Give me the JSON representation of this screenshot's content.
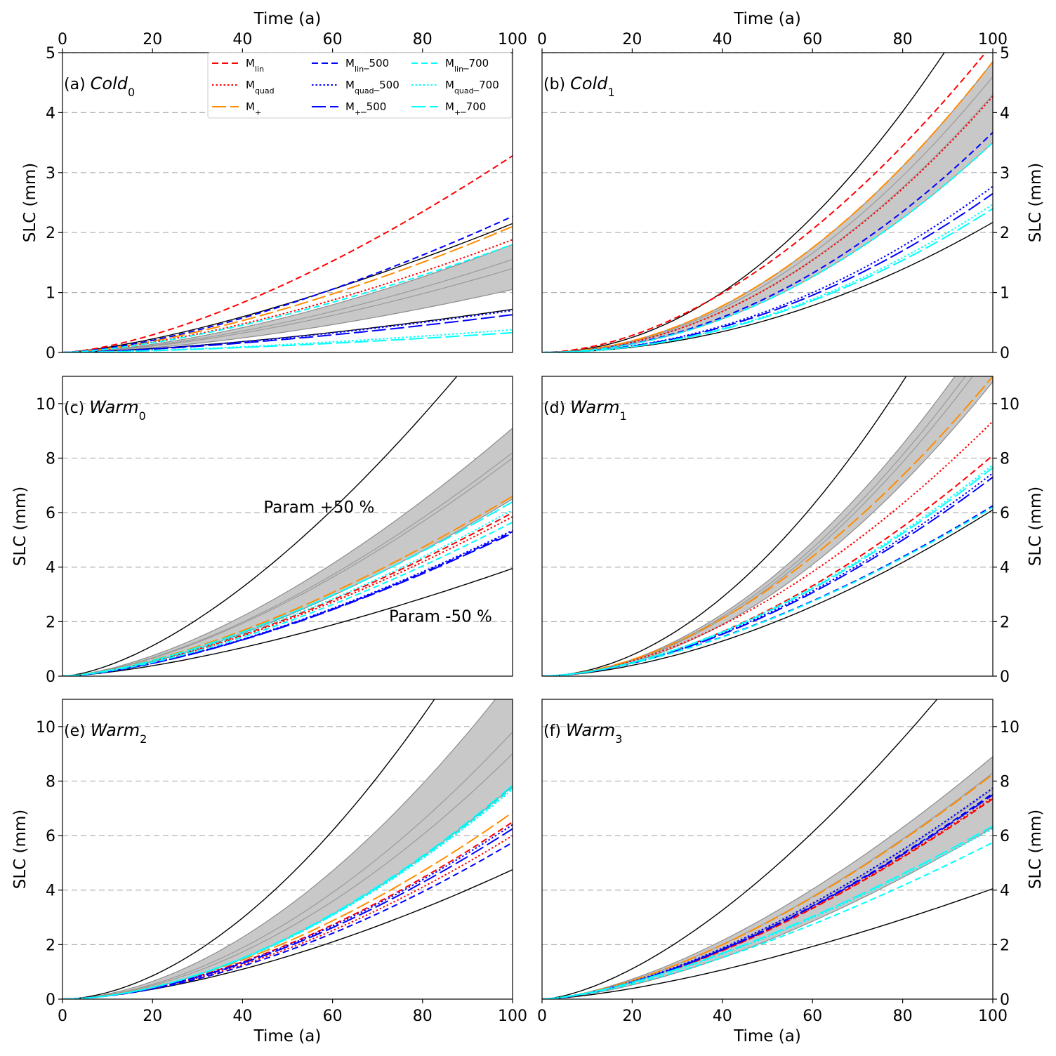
{
  "chart_data": {
    "type": "line",
    "panel_order": [
      "a",
      "b",
      "c",
      "d",
      "e",
      "f"
    ],
    "x_axis": {
      "label": "Time (a)",
      "lim": [
        0,
        100
      ],
      "ticks": [
        "0",
        "20",
        "40",
        "60",
        "80",
        "100"
      ]
    },
    "y_label": "SLC (mm)",
    "grid": "horizontal dashed",
    "legend": {
      "placement": "top-center of panel (a)",
      "entries": [
        {
          "base": "M",
          "sub": "lin",
          "suffix": "",
          "color": "#ff0000",
          "dash": "dashed"
        },
        {
          "base": "M",
          "sub": "quad",
          "suffix": "",
          "color": "#ff0000",
          "dash": "dotted"
        },
        {
          "base": "M",
          "sub": "+",
          "suffix": "",
          "color": "#ff8c00",
          "dash": "longdash"
        },
        {
          "base": "M",
          "sub": "lin",
          "suffix": "_500",
          "color": "#0000ff",
          "dash": "dashed"
        },
        {
          "base": "M",
          "sub": "quad",
          "suffix": "_500",
          "color": "#0000ff",
          "dash": "dotted"
        },
        {
          "base": "M",
          "sub": "+",
          "suffix": "_500",
          "color": "#0000ff",
          "dash": "longdash"
        },
        {
          "base": "M",
          "sub": "lin",
          "suffix": "_700",
          "color": "#00ffff",
          "dash": "dashed"
        },
        {
          "base": "M",
          "sub": "quad",
          "suffix": "_700",
          "color": "#00ffff",
          "dash": "dotted"
        },
        {
          "base": "M",
          "sub": "+",
          "suffix": "_700",
          "color": "#00ffff",
          "dash": "longdash"
        }
      ]
    },
    "panels": {
      "a": {
        "label_prefix": "(a)",
        "scenario": "Cold",
        "scenario_sub": "0",
        "ylim": [
          0,
          5
        ],
        "yticks": [
          0,
          1,
          2,
          3,
          4,
          5
        ],
        "top_axis": true,
        "bottom_axis": false,
        "yaxis_side": "left",
        "envelope": {
          "exponent": 1.6,
          "lower_end": 1.05,
          "upper_end": 1.8
        },
        "inner_lines": [
          {
            "exponent": 1.6,
            "end": 1.4
          },
          {
            "exponent": 1.6,
            "end": 1.55
          }
        ],
        "black_lines": [
          {
            "exponent": 1.4,
            "end": 2.15
          },
          {
            "exponent": 1.5,
            "end": 0.72
          }
        ],
        "series": [
          {
            "legend": 0,
            "exponent": 1.5,
            "end": 3.28
          },
          {
            "legend": 1,
            "exponent": 1.5,
            "end": 1.88
          },
          {
            "legend": 2,
            "exponent": 1.5,
            "end": 2.1
          },
          {
            "legend": 3,
            "exponent": 1.5,
            "end": 2.27
          },
          {
            "legend": 4,
            "exponent": 1.5,
            "end": 0.7
          },
          {
            "legend": 5,
            "exponent": 1.5,
            "end": 0.63
          },
          {
            "legend": 6,
            "exponent": 1.5,
            "end": 1.8
          },
          {
            "legend": 7,
            "exponent": 1.5,
            "end": 0.38
          },
          {
            "legend": 8,
            "exponent": 1.5,
            "end": 0.33
          }
        ]
      },
      "b": {
        "label_prefix": "(b)",
        "scenario": "Cold",
        "scenario_sub": "1",
        "ylim": [
          0,
          5
        ],
        "yticks": [
          0,
          1,
          2,
          3,
          4,
          5
        ],
        "top_axis": true,
        "bottom_axis": false,
        "yaxis_side": "right",
        "envelope": {
          "exponent": 2.0,
          "lower_end": 3.5,
          "upper_end": 4.85
        },
        "inner_lines": [
          {
            "exponent": 2.0,
            "end": 4.3
          },
          {
            "exponent": 2.0,
            "end": 4.6
          }
        ],
        "black_lines": [
          {
            "exponent": 2.0,
            "end": 6.28
          },
          {
            "exponent": 2.0,
            "end": 2.17
          }
        ],
        "series": [
          {
            "legend": 0,
            "exponent": 1.8,
            "end": 5.15
          },
          {
            "legend": 1,
            "exponent": 2.0,
            "end": 4.27
          },
          {
            "legend": 2,
            "exponent": 2.0,
            "end": 4.85
          },
          {
            "legend": 3,
            "exponent": 2.0,
            "end": 3.67
          },
          {
            "legend": 4,
            "exponent": 2.0,
            "end": 2.77
          },
          {
            "legend": 5,
            "exponent": 2.0,
            "end": 2.65
          },
          {
            "legend": 6,
            "exponent": 2.0,
            "end": 3.5
          },
          {
            "legend": 7,
            "exponent": 2.0,
            "end": 2.47
          },
          {
            "legend": 8,
            "exponent": 2.0,
            "end": 2.4
          }
        ]
      },
      "c": {
        "label_prefix": "(c)",
        "scenario": "Warm",
        "scenario_sub": "0",
        "ylim": [
          0,
          11
        ],
        "yticks": [
          0,
          2,
          4,
          6,
          8,
          10
        ],
        "top_axis": false,
        "bottom_axis": false,
        "yaxis_side": "left",
        "envelope": {
          "exponent": 1.55,
          "lower_end": 6.5,
          "upper_end": 9.1
        },
        "inner_lines": [
          {
            "exponent": 1.55,
            "end": 8.0
          },
          {
            "exponent": 1.55,
            "end": 8.2
          }
        ],
        "black_lines": [
          {
            "exponent": 1.55,
            "end": 13.5
          },
          {
            "exponent": 1.45,
            "end": 3.95
          }
        ],
        "series": [
          {
            "legend": 0,
            "exponent": 1.5,
            "end": 6.0
          },
          {
            "legend": 1,
            "exponent": 1.5,
            "end": 5.85
          },
          {
            "legend": 2,
            "exponent": 1.5,
            "end": 6.6
          },
          {
            "legend": 3,
            "exponent": 1.5,
            "end": 5.3
          },
          {
            "legend": 4,
            "exponent": 1.5,
            "end": 5.35
          },
          {
            "legend": 5,
            "exponent": 1.5,
            "end": 5.25
          },
          {
            "legend": 6,
            "exponent": 1.5,
            "end": 5.65
          },
          {
            "legend": 7,
            "exponent": 1.5,
            "end": 6.1
          },
          {
            "legend": 8,
            "exponent": 1.5,
            "end": 6.4
          }
        ],
        "annotations": [
          {
            "text": "Param +50 %",
            "x": 57,
            "y": 6.0
          },
          {
            "text": "Param -50 %",
            "x": 84,
            "y": 2.0
          }
        ]
      },
      "d": {
        "label_prefix": "(d)",
        "scenario": "Warm",
        "scenario_sub": "1",
        "ylim": [
          0,
          11
        ],
        "yticks": [
          0,
          2,
          4,
          6,
          8,
          10
        ],
        "top_axis": false,
        "bottom_axis": false,
        "yaxis_side": "right",
        "envelope": {
          "exponent": 1.9,
          "lower_end": 10.8,
          "upper_end": 13.0
        },
        "inner_lines": [
          {
            "exponent": 1.9,
            "end": 12.0
          },
          {
            "exponent": 1.9,
            "end": 12.4
          }
        ],
        "black_lines": [
          {
            "exponent": 1.9,
            "end": 16.5
          },
          {
            "exponent": 1.7,
            "end": 6.1
          }
        ],
        "series": [
          {
            "legend": 0,
            "exponent": 1.75,
            "end": 8.1
          },
          {
            "legend": 1,
            "exponent": 1.75,
            "end": 9.35
          },
          {
            "legend": 2,
            "exponent": 1.8,
            "end": 11.0
          },
          {
            "legend": 3,
            "exponent": 1.6,
            "end": 6.25
          },
          {
            "legend": 4,
            "exponent": 1.7,
            "end": 7.45
          },
          {
            "legend": 5,
            "exponent": 1.7,
            "end": 7.3
          },
          {
            "legend": 6,
            "exponent": 1.6,
            "end": 6.2
          },
          {
            "legend": 7,
            "exponent": 1.7,
            "end": 7.75
          },
          {
            "legend": 8,
            "exponent": 1.7,
            "end": 7.65
          }
        ]
      },
      "e": {
        "label_prefix": "(e)",
        "scenario": "Warm",
        "scenario_sub": "2",
        "ylim": [
          0,
          11
        ],
        "yticks": [
          0,
          2,
          4,
          6,
          8,
          10
        ],
        "top_axis": false,
        "bottom_axis": true,
        "yaxis_side": "left",
        "envelope": {
          "exponent": 1.8,
          "lower_end": 7.8,
          "upper_end": 11.8
        },
        "inner_lines": [
          {
            "exponent": 1.8,
            "end": 9.0
          },
          {
            "exponent": 1.8,
            "end": 9.8
          }
        ],
        "black_lines": [
          {
            "exponent": 1.8,
            "end": 15.5
          },
          {
            "exponent": 1.6,
            "end": 4.75
          }
        ],
        "series": [
          {
            "legend": 0,
            "exponent": 1.7,
            "end": 6.5
          },
          {
            "legend": 1,
            "exponent": 1.7,
            "end": 6.0
          },
          {
            "legend": 2,
            "exponent": 1.7,
            "end": 6.85
          },
          {
            "legend": 3,
            "exponent": 1.7,
            "end": 5.75
          },
          {
            "legend": 4,
            "exponent": 1.7,
            "end": 6.4
          },
          {
            "legend": 5,
            "exponent": 1.7,
            "end": 6.25
          },
          {
            "legend": 6,
            "exponent": 1.8,
            "end": 7.75
          },
          {
            "legend": 7,
            "exponent": 1.8,
            "end": 7.7
          },
          {
            "legend": 8,
            "exponent": 1.8,
            "end": 7.85
          }
        ]
      },
      "f": {
        "label_prefix": "(f)",
        "scenario": "Warm",
        "scenario_sub": "3",
        "ylim": [
          0,
          11
        ],
        "yticks": [
          0,
          2,
          4,
          6,
          8,
          10
        ],
        "top_axis": false,
        "bottom_axis": true,
        "yaxis_side": "right",
        "envelope": {
          "exponent": 1.55,
          "lower_end": 6.3,
          "upper_end": 8.9
        },
        "inner_lines": [
          {
            "exponent": 1.55,
            "end": 7.7
          },
          {
            "exponent": 1.55,
            "end": 8.3
          }
        ],
        "black_lines": [
          {
            "exponent": 1.55,
            "end": 13.5
          },
          {
            "exponent": 1.45,
            "end": 4.05
          }
        ],
        "series": [
          {
            "legend": 0,
            "exponent": 1.55,
            "end": 7.35
          },
          {
            "legend": 1,
            "exponent": 1.55,
            "end": 7.4
          },
          {
            "legend": 2,
            "exponent": 1.55,
            "end": 8.25
          },
          {
            "legend": 3,
            "exponent": 1.55,
            "end": 7.55
          },
          {
            "legend": 4,
            "exponent": 1.55,
            "end": 7.75
          },
          {
            "legend": 5,
            "exponent": 1.55,
            "end": 7.5
          },
          {
            "legend": 6,
            "exponent": 1.45,
            "end": 5.75
          },
          {
            "legend": 7,
            "exponent": 1.45,
            "end": 6.25
          },
          {
            "legend": 8,
            "exponent": 1.45,
            "end": 6.35
          }
        ]
      }
    }
  }
}
